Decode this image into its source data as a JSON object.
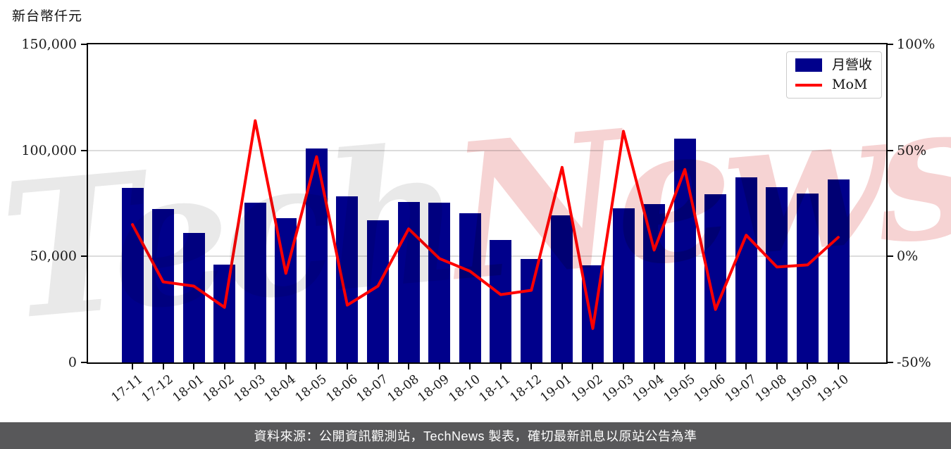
{
  "title": "新台幣仟元",
  "legend": {
    "bar_label": "月營收",
    "line_label": "MoM"
  },
  "footer_text": "資料來源：公開資訊觀測站，TechNews 製表，確切最新訊息以原站公告為準",
  "watermark": {
    "part1": "Tech",
    "part2": "News"
  },
  "colors": {
    "bar": "#00008b",
    "line": "#ff0000",
    "grid": "#dcdcdc",
    "axis": "#000000",
    "footer_bg": "#58585a",
    "footer_text": "#ffffff"
  },
  "chart_data": {
    "type": "bar",
    "title": "新台幣仟元",
    "categories": [
      "17-11",
      "17-12",
      "18-01",
      "18-02",
      "18-03",
      "18-04",
      "18-05",
      "18-06",
      "18-07",
      "18-08",
      "18-09",
      "18-10",
      "18-11",
      "18-12",
      "19-01",
      "19-02",
      "19-03",
      "19-04",
      "19-05",
      "19-06",
      "19-07",
      "19-08",
      "19-09",
      "19-10"
    ],
    "series": [
      {
        "name": "月營收",
        "type": "bar",
        "axis": "left",
        "unit": "新台幣仟元",
        "values": [
          82200,
          72300,
          61000,
          46000,
          75500,
          68200,
          101000,
          78200,
          67000,
          75700,
          75300,
          70400,
          57600,
          48700,
          69200,
          45800,
          72800,
          74700,
          105700,
          79200,
          87400,
          82800,
          79500,
          86400
        ]
      },
      {
        "name": "MoM",
        "type": "line",
        "axis": "right",
        "unit": "%",
        "values": [
          15,
          -12,
          -14,
          -24,
          64,
          -8,
          47,
          -23,
          -14,
          13,
          -1,
          -7,
          -18,
          -16,
          42,
          -34,
          59,
          3,
          41,
          -25,
          10,
          -5,
          -4,
          9
        ]
      }
    ],
    "y_left": {
      "min": 0,
      "max": 150000,
      "tick_labels": [
        "150,000",
        "100,000",
        "50,000",
        "0"
      ],
      "tick_values": [
        150000,
        100000,
        50000,
        0
      ]
    },
    "y_right": {
      "min": -50,
      "max": 100,
      "tick_labels": [
        "100%",
        "50%",
        "0%",
        "-50%"
      ],
      "tick_values": [
        100,
        50,
        0,
        -50
      ]
    },
    "grid": "horizontal gridlines at 50,000 and 100,000 (= 0% and 50%)",
    "legend_position": "top-right inside plot"
  }
}
